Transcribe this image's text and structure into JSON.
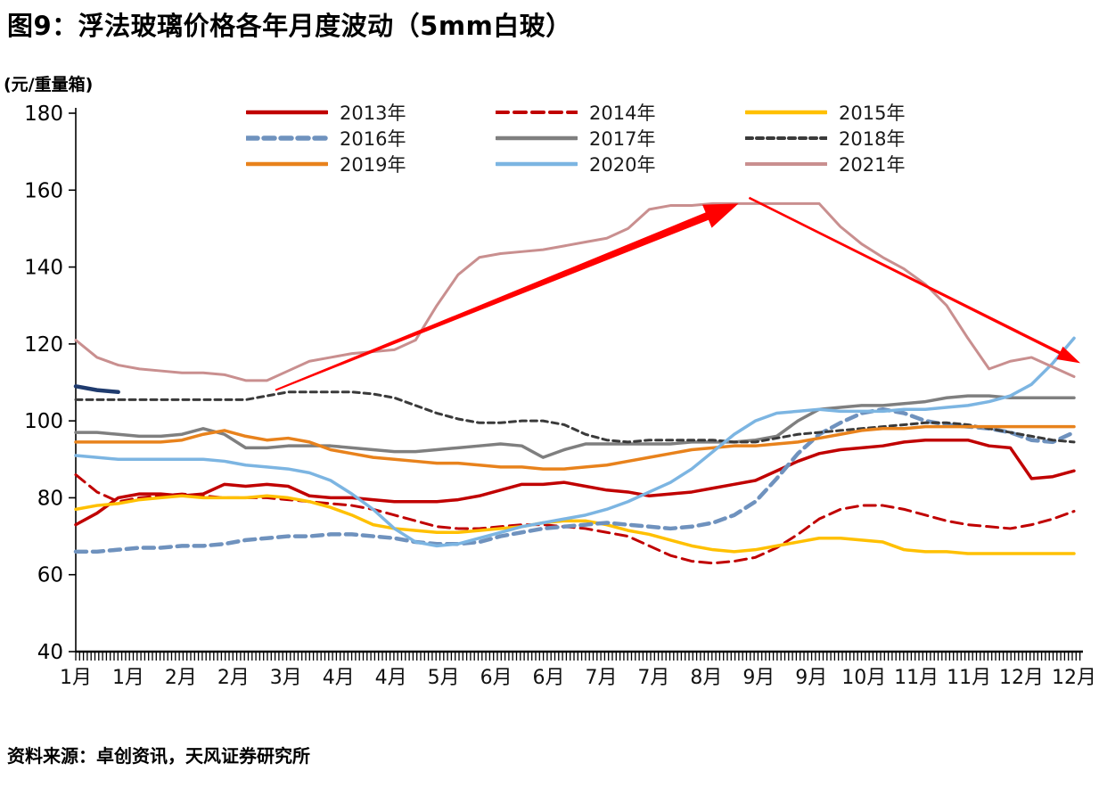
{
  "title": "图9：浮法玻璃价格各年月度波动（5mm白玻）",
  "y_unit": "(元/重量箱)",
  "source": "资料来源：卓创资讯，天风证券研究所",
  "chart_data": {
    "type": "line",
    "title": "浮法玻璃价格各年月度波动（5mm白玻）",
    "ylabel": "元/重量箱",
    "ylim": [
      40,
      180
    ],
    "y_ticks": [
      180,
      160,
      140,
      120,
      100,
      80,
      60,
      40
    ],
    "grid": false,
    "legend_position": "top",
    "x_tick_labels": [
      "1月",
      "1月",
      "2月",
      "2月",
      "3月",
      "4月",
      "4月",
      "5月",
      "6月",
      "6月",
      "7月",
      "7月",
      "8月",
      "9月",
      "9月",
      "10月",
      "11月",
      "11月",
      "12月",
      "12月"
    ],
    "series": [
      {
        "name": "2013年",
        "color": "#C00000",
        "dash": "",
        "width": 3.5,
        "values": [
          73,
          76,
          80,
          81,
          81,
          80.5,
          81,
          83.5,
          83,
          83.5,
          83,
          80.5,
          80,
          80,
          79.5,
          79,
          79,
          79,
          79.5,
          80.5,
          82,
          83.5,
          83.5,
          84,
          83,
          82,
          81.5,
          80.5,
          81,
          81.5,
          82.5,
          83.5,
          84.5,
          87,
          89.5,
          91.5,
          92.5,
          93,
          93.5,
          94.5,
          95,
          95,
          95,
          93.5,
          93,
          85,
          85.5,
          87
        ]
      },
      {
        "name": "2014年",
        "color": "#C00000",
        "dash": "13,7",
        "width": 3,
        "values": [
          86,
          81.5,
          79,
          80,
          80.5,
          81,
          80.5,
          80,
          80,
          80,
          79.5,
          79,
          78.5,
          78,
          77,
          75.5,
          74,
          72.5,
          72,
          72,
          72.5,
          73,
          73,
          72.5,
          72,
          71,
          70,
          67.5,
          65,
          63.5,
          63,
          63.5,
          64.5,
          67,
          70.5,
          74.5,
          77,
          78,
          78,
          77,
          75.5,
          74,
          73,
          72.5,
          72,
          73,
          74.5,
          76.5
        ]
      },
      {
        "name": "2015年",
        "color": "#FFC000",
        "dash": "",
        "width": 3.5,
        "values": [
          77,
          78,
          78.5,
          79.5,
          80,
          80.5,
          80,
          80,
          80,
          80.5,
          80,
          79,
          77.5,
          75.5,
          73,
          72,
          71.5,
          71,
          71,
          71.5,
          72,
          72.5,
          73.5,
          74,
          74,
          73,
          71.5,
          70.5,
          69,
          67.5,
          66.5,
          66,
          66.5,
          67.5,
          68.5,
          69.5,
          69.5,
          69,
          68.5,
          66.5,
          66,
          66,
          65.5,
          65.5,
          65.5,
          65.5,
          65.5,
          65.5
        ]
      },
      {
        "name": "2016年",
        "color": "#6F92BE",
        "dash": "12,7",
        "width": 4.5,
        "values": [
          66,
          66,
          66.5,
          67,
          67,
          67.5,
          67.5,
          68,
          69,
          69.5,
          70,
          70,
          70.5,
          70.5,
          70,
          69.5,
          68.5,
          68,
          68,
          68.5,
          70,
          71,
          72,
          72.5,
          73,
          73.5,
          73,
          72.5,
          72,
          72.5,
          73.5,
          75.5,
          79,
          85,
          91.5,
          96.5,
          99.5,
          102,
          103,
          102,
          100,
          99,
          98.5,
          98,
          97,
          95,
          94.5,
          97
        ]
      },
      {
        "name": "2017年",
        "color": "#7F7F7F",
        "dash": "",
        "width": 3.5,
        "values": [
          97,
          97,
          96.5,
          96,
          96,
          96.5,
          98,
          96.5,
          93,
          93,
          93.5,
          93.5,
          93.5,
          93,
          92.5,
          92,
          92,
          92.5,
          93,
          93.5,
          94,
          93.5,
          90.5,
          92.5,
          94,
          94,
          94,
          94,
          94,
          94.5,
          94.5,
          94.5,
          95,
          96,
          100,
          103,
          103.5,
          104,
          104,
          104.5,
          105,
          106,
          106.5,
          106.5,
          106,
          106,
          106,
          106
        ]
      },
      {
        "name": "2018年",
        "color": "#3A3A3A",
        "dash": "7,5",
        "width": 3,
        "values": [
          105.5,
          105.5,
          105.5,
          105.5,
          105.5,
          105.5,
          105.5,
          105.5,
          105.5,
          106.5,
          107.5,
          107.5,
          107.5,
          107.5,
          107,
          106,
          104,
          102,
          100.5,
          99.5,
          99.5,
          100,
          100,
          99,
          96.5,
          95,
          94.5,
          95,
          95,
          95,
          95,
          94.5,
          94.5,
          95.5,
          96.5,
          97,
          97.5,
          98,
          98.5,
          99,
          99.5,
          99.5,
          99,
          98,
          97,
          96,
          95,
          94.5
        ]
      },
      {
        "name": "2019年",
        "color": "#E8821C",
        "dash": "",
        "width": 3.5,
        "values": [
          94.5,
          94.5,
          94.5,
          94.5,
          94.5,
          95,
          96.5,
          97.5,
          96,
          95,
          95.5,
          94.5,
          92.5,
          91.5,
          90.5,
          90,
          89.5,
          89,
          89,
          88.5,
          88,
          88,
          87.5,
          87.5,
          88,
          88.5,
          89.5,
          90.5,
          91.5,
          92.5,
          93,
          93.5,
          93.5,
          94,
          94.5,
          95.5,
          96.5,
          97.5,
          98,
          98,
          98.5,
          98.5,
          98.5,
          98.5,
          98.5,
          98.5,
          98.5,
          98.5
        ]
      },
      {
        "name": "2020年",
        "color": "#7CB5E2",
        "dash": "",
        "width": 3.5,
        "values": [
          91,
          90.5,
          90,
          90,
          90,
          90,
          90,
          89.5,
          88.5,
          88,
          87.5,
          86.5,
          84.5,
          81,
          77,
          72,
          68.5,
          67.5,
          68,
          69.5,
          71,
          72.5,
          73.5,
          74.5,
          75.5,
          77,
          79,
          81.5,
          84,
          87.5,
          92,
          96.5,
          100,
          102,
          102.5,
          103,
          102.5,
          102.5,
          102.5,
          103,
          103,
          103.5,
          104,
          105,
          106.5,
          109.5,
          115,
          121.5
        ]
      },
      {
        "name": "2021年",
        "color": "#C98F8F",
        "dash": "",
        "width": 3,
        "values": [
          121,
          116.5,
          114.5,
          113.5,
          113,
          112.5,
          112.5,
          112,
          110.5,
          110.5,
          113,
          115.5,
          116.5,
          117.5,
          118,
          118.5,
          121,
          130,
          138,
          142.5,
          143.5,
          144,
          144.5,
          145.5,
          146.5,
          147.5,
          150,
          155,
          156,
          156,
          156.5,
          156.5,
          156.5,
          156.5,
          156.5,
          156.5,
          150.5,
          146,
          142.5,
          139.5,
          135.5,
          130,
          121.5,
          113.5,
          115.5,
          116.5,
          114,
          111.5
        ]
      }
    ],
    "partial_segment": {
      "color": "#1F3B6E",
      "width": 4.5,
      "values": [
        109,
        108,
        107.5
      ]
    },
    "annotations": {
      "arrows": [
        {
          "from": {
            "xi": 9.4,
            "v": 108
          },
          "to": {
            "xi": 31.2,
            "v": 156.5
          },
          "style": "tapered",
          "color": "#FF0000"
        },
        {
          "from": {
            "xi": 31.7,
            "v": 158
          },
          "to": {
            "xi": 47.3,
            "v": 115
          },
          "style": "thin",
          "color": "#FF0000"
        }
      ]
    }
  }
}
